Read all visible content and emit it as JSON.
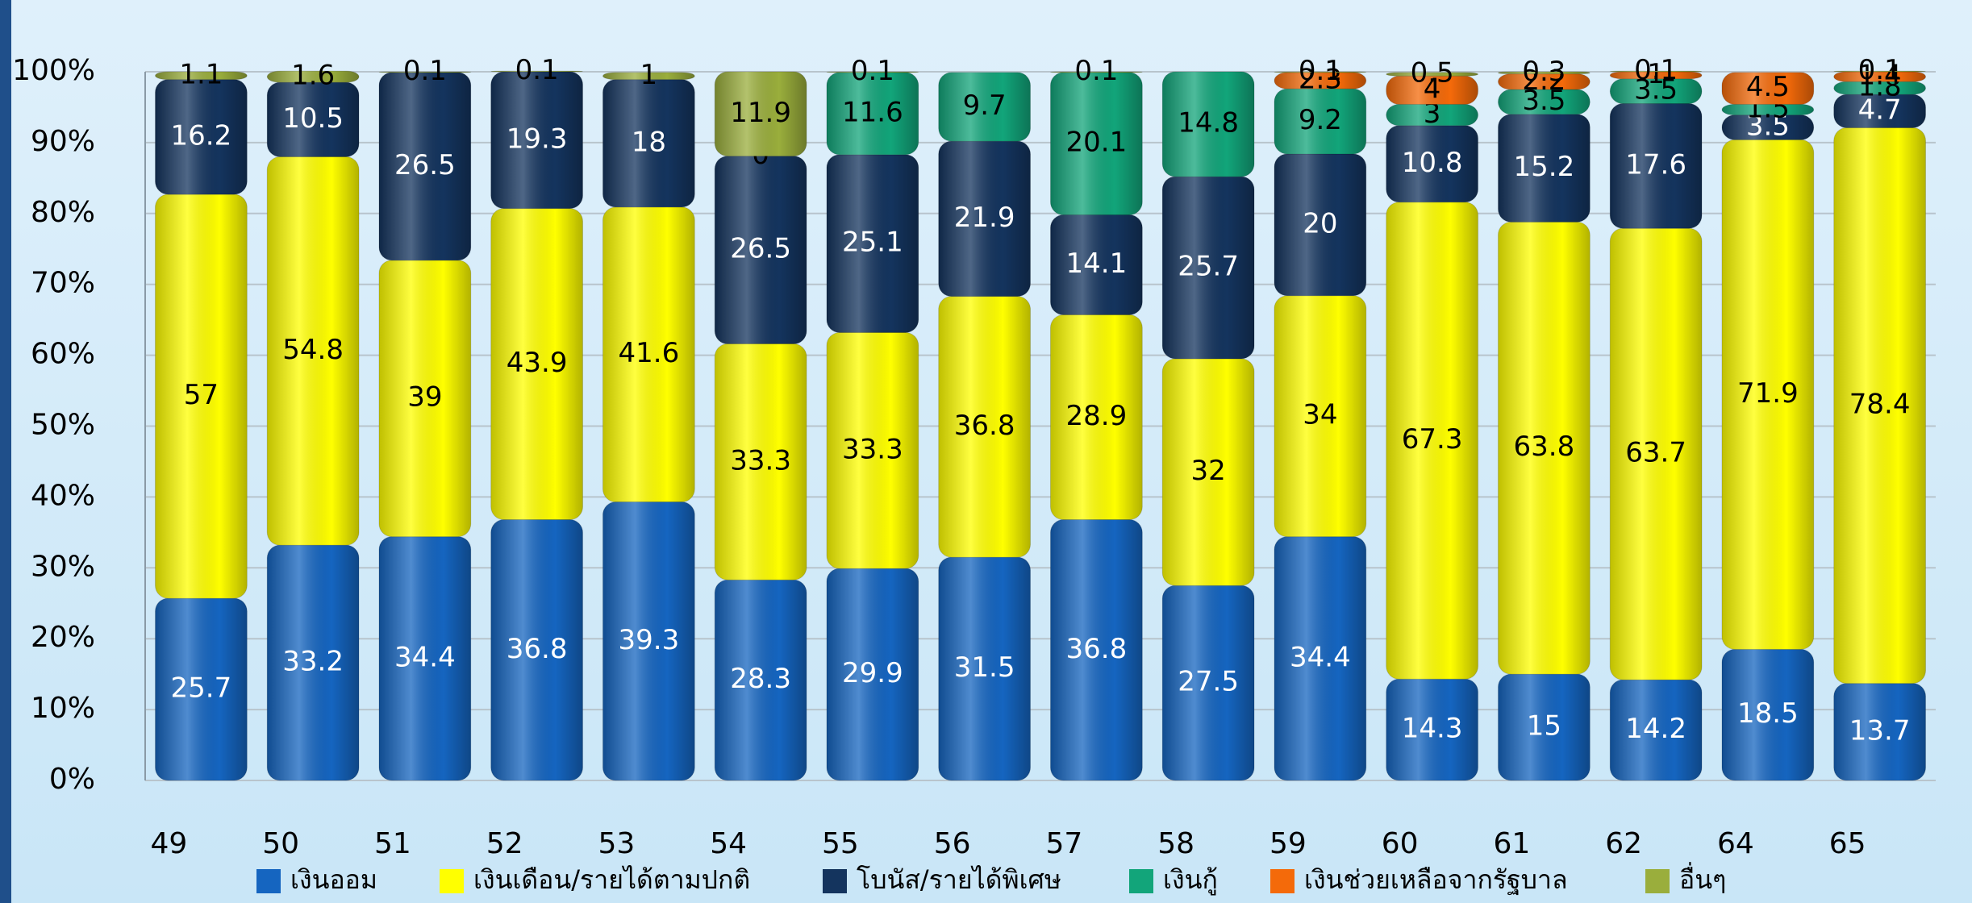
{
  "chart_data": {
    "type": "bar",
    "stacked": true,
    "categories": [
      "49",
      "50",
      "51",
      "52",
      "53",
      "54",
      "55",
      "56",
      "57",
      "58",
      "59",
      "60",
      "61",
      "62",
      "64",
      "65"
    ],
    "series": [
      {
        "name": "เงินออม",
        "color": "#1565c0",
        "values": [
          25.7,
          33.2,
          34.4,
          36.8,
          39.3,
          28.3,
          29.9,
          31.5,
          36.8,
          27.5,
          34.4,
          14.3,
          15.0,
          14.2,
          18.5,
          13.7
        ]
      },
      {
        "name": "เงินเดือน/รายได้ตามปกติ",
        "color": "#ffff00",
        "values": [
          57.0,
          54.8,
          39.0,
          43.9,
          41.6,
          33.3,
          33.3,
          36.8,
          28.9,
          32.0,
          34.0,
          67.3,
          63.8,
          63.7,
          71.9,
          78.4
        ]
      },
      {
        "name": "โบนัส/รายได้พิเศษ",
        "color": "#14345e",
        "values": [
          16.2,
          10.5,
          26.5,
          19.3,
          18.0,
          26.5,
          25.1,
          21.9,
          14.1,
          25.7,
          20.0,
          10.8,
          15.2,
          17.6,
          3.5,
          4.7
        ]
      },
      {
        "name": "เงินกู้",
        "color": "#12a57a",
        "values": [
          null,
          null,
          null,
          null,
          null,
          0.0,
          11.6,
          9.7,
          20.1,
          14.8,
          9.2,
          3.0,
          3.5,
          3.5,
          1.5,
          1.8
        ]
      },
      {
        "name": "เงินช่วยเหลือจากรัฐบาล",
        "color": "#f46a0a",
        "values": [
          null,
          null,
          null,
          null,
          null,
          null,
          null,
          null,
          null,
          null,
          2.3,
          4.0,
          2.2,
          1.0,
          4.5,
          1.4
        ]
      },
      {
        "name": "อื่นๆ",
        "color": "#9aae3c",
        "values": [
          1.1,
          1.6,
          0.1,
          0.1,
          1.0,
          11.9,
          0.1,
          null,
          0.1,
          null,
          0.1,
          0.5,
          0.3,
          0.1,
          null,
          0.1
        ]
      }
    ],
    "ylim": [
      0,
      100
    ],
    "yticks": [
      {
        "value": 0,
        "label": "0%"
      },
      {
        "value": 10,
        "label": "10%"
      },
      {
        "value": 20,
        "label": "20%"
      },
      {
        "value": 30,
        "label": "30%"
      },
      {
        "value": 40,
        "label": "40%"
      },
      {
        "value": 50,
        "label": "50%"
      },
      {
        "value": 60,
        "label": "60%"
      },
      {
        "value": 70,
        "label": "70%"
      },
      {
        "value": 80,
        "label": "80%"
      },
      {
        "value": 90,
        "label": "90%"
      },
      {
        "value": 100,
        "label": "100%"
      }
    ],
    "grid": true
  }
}
